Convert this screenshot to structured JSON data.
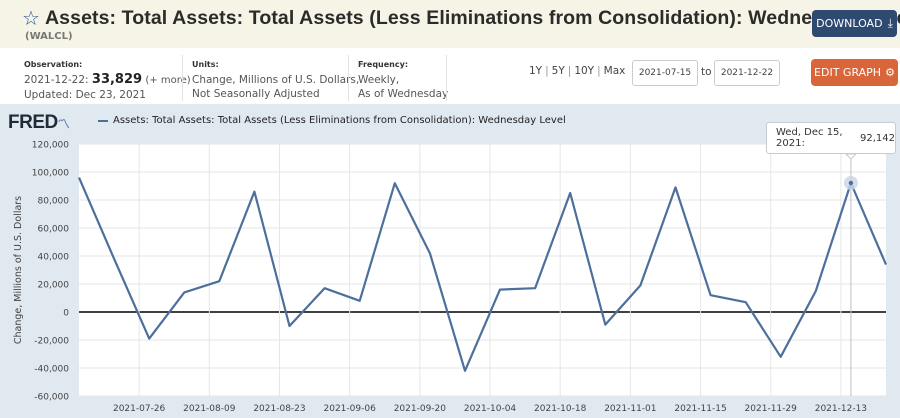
{
  "header": {
    "title": "Assets: Total Assets: Total Assets (Less Eliminations from Consolidation): Wednesday Level",
    "series_id": "(WALCL)",
    "download_label": "DOWNLOAD"
  },
  "info": {
    "observation_label": "Observation:",
    "observation_date": "2021-12-22:",
    "observation_value": "33,829",
    "observation_more": "(+ more)",
    "updated": "Updated: Dec 23, 2021",
    "units_label": "Units:",
    "units_line1": "Change, Millions of U.S. Dollars,",
    "units_line2": "Not Seasonally Adjusted",
    "frequency_label": "Frequency:",
    "frequency_line1": "Weekly,",
    "frequency_line2": "As of Wednesday"
  },
  "range": {
    "links": [
      "1Y",
      "5Y",
      "10Y",
      "Max"
    ],
    "from": "2021-07-15",
    "to_label": "to",
    "to": "2021-12-22"
  },
  "edit_label": "EDIT GRAPH",
  "logo": "FRED",
  "legend_label": "Assets: Total Assets: Total Assets (Less Eliminations from Consolidation): Wednesday Level",
  "tooltip": {
    "date": "Wed, Dec 15, 2021:",
    "value": "92,142"
  },
  "colors": {
    "line": "#4d6f9c",
    "edit_button": "#d9663a",
    "download_button": "#2e4a70",
    "graph_bg": "#e1e9f0"
  },
  "chart_data": {
    "type": "line",
    "ylabel": "Change, Millions of U.S. Dollars",
    "ylim": [
      -60000,
      120000
    ],
    "yticks": [
      -60000,
      -40000,
      -20000,
      0,
      20000,
      40000,
      60000,
      80000,
      100000,
      120000
    ],
    "ytick_labels": [
      "-60,000",
      "-40,000",
      "-20,000",
      "0",
      "20,000",
      "40,000",
      "60,000",
      "80,000",
      "100,000",
      "120,000"
    ],
    "xlim": [
      "2021-07-14",
      "2021-12-22"
    ],
    "xtick_labels": [
      "2021-07-26",
      "2021-08-09",
      "2021-08-23",
      "2021-09-06",
      "2021-09-20",
      "2021-10-04",
      "2021-10-18",
      "2021-11-01",
      "2021-11-15",
      "2021-11-29",
      "2021-12-13"
    ],
    "series": [
      {
        "x": [
          "2021-07-14",
          "2021-07-21",
          "2021-07-28",
          "2021-08-04",
          "2021-08-11",
          "2021-08-18",
          "2021-08-25",
          "2021-09-01",
          "2021-09-08",
          "2021-09-15",
          "2021-09-22",
          "2021-09-29",
          "2021-10-06",
          "2021-10-13",
          "2021-10-20",
          "2021-10-27",
          "2021-11-03",
          "2021-11-10",
          "2021-11-17",
          "2021-11-24",
          "2021-12-01",
          "2021-12-08",
          "2021-12-15",
          "2021-12-22"
        ],
        "values": [
          96000,
          38000,
          -19000,
          14000,
          22000,
          86000,
          -10000,
          17000,
          8000,
          92000,
          42000,
          -42000,
          16000,
          17000,
          85000,
          -9000,
          19000,
          89000,
          12000,
          7000,
          -32000,
          15000,
          92142,
          33829
        ]
      }
    ],
    "grid": "horizontal"
  }
}
